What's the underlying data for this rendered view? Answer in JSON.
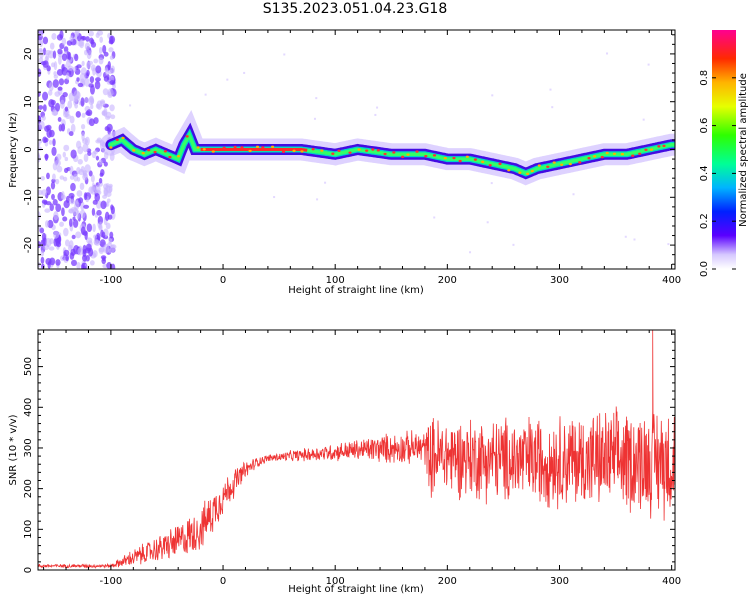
{
  "title": "S135.2023.051.04.23.G18",
  "colors": {
    "snr_line": "#ee3333",
    "spec_strong": "#ff2a2a",
    "spec_mid": "#00d2c8",
    "spec_weak": "#3a00e0",
    "spec_faint": "#c8b4ff",
    "scatter": "#7a3cff"
  },
  "chart_data": [
    {
      "type": "heatmap",
      "xlabel": "Height of straight line (km)",
      "ylabel": "Frequency (Hz)",
      "xlim": [
        -165,
        403
      ],
      "ylim": [
        -25,
        25
      ],
      "xticks": [
        "-100",
        "0",
        "100",
        "200",
        "300",
        "400"
      ],
      "yticks": [
        "-20",
        "-10",
        "0",
        "10",
        "20"
      ],
      "xtick_values": [
        -100,
        0,
        100,
        200,
        300,
        400
      ],
      "ytick_values": [
        -20,
        -10,
        0,
        10,
        20
      ],
      "colorbar": {
        "label": "Normalized spectral amplitude",
        "ticks": [
          "0.0",
          "0.2",
          "0.4",
          "0.6",
          "0.8"
        ],
        "tick_values": [
          0.0,
          0.2,
          0.4,
          0.6,
          0.8
        ],
        "range": [
          0,
          1
        ],
        "colormap": "gist_rainbow"
      },
      "ridge": {
        "x": [
          -100,
          -90,
          -80,
          -70,
          -60,
          -50,
          -40,
          -35,
          -30,
          -25,
          -20,
          0,
          20,
          50,
          70,
          100,
          120,
          150,
          180,
          200,
          220,
          240,
          260,
          270,
          280,
          300,
          320,
          340,
          360,
          380,
          400
        ],
        "y": [
          1,
          2,
          0,
          -1,
          0,
          -1,
          -2,
          1,
          3,
          0,
          0,
          0,
          0,
          0,
          0,
          -1,
          0,
          -1,
          -1,
          -2,
          -2,
          -3,
          -4,
          -5,
          -4,
          -3,
          -2,
          -1,
          -1,
          0,
          1
        ]
      },
      "noise_region_x": [
        -165,
        -105
      ],
      "grid": false
    },
    {
      "type": "line",
      "xlabel": "Height of straight line (km)",
      "ylabel": "SNR (10 * v/v)",
      "xlim": [
        -165,
        403
      ],
      "ylim": [
        0,
        590
      ],
      "xticks": [
        "-100",
        "0",
        "100",
        "200",
        "300",
        "400"
      ],
      "yticks": [
        "0",
        "100",
        "200",
        "300",
        "400",
        "500"
      ],
      "xtick_values": [
        -100,
        0,
        100,
        200,
        300,
        400
      ],
      "ytick_values": [
        0,
        100,
        200,
        300,
        400,
        500
      ],
      "envelope": {
        "x": [
          -165,
          -100,
          -90,
          -80,
          -60,
          -40,
          -20,
          -10,
          0,
          10,
          20,
          30,
          40,
          60,
          80,
          100,
          120,
          140,
          160,
          180,
          185,
          200,
          250,
          300,
          350,
          380,
          400
        ],
        "mean": [
          10,
          10,
          20,
          30,
          50,
          70,
          100,
          140,
          180,
          215,
          245,
          265,
          275,
          280,
          285,
          290,
          295,
          298,
          300,
          300,
          280,
          280,
          270,
          270,
          270,
          270,
          270
        ],
        "spread": [
          5,
          5,
          15,
          25,
          35,
          50,
          60,
          60,
          50,
          40,
          25,
          15,
          10,
          15,
          20,
          25,
          30,
          40,
          45,
          50,
          110,
          110,
          120,
          130,
          140,
          150,
          160
        ]
      },
      "peak": {
        "x": 383,
        "y": 590
      },
      "grid": false
    }
  ]
}
